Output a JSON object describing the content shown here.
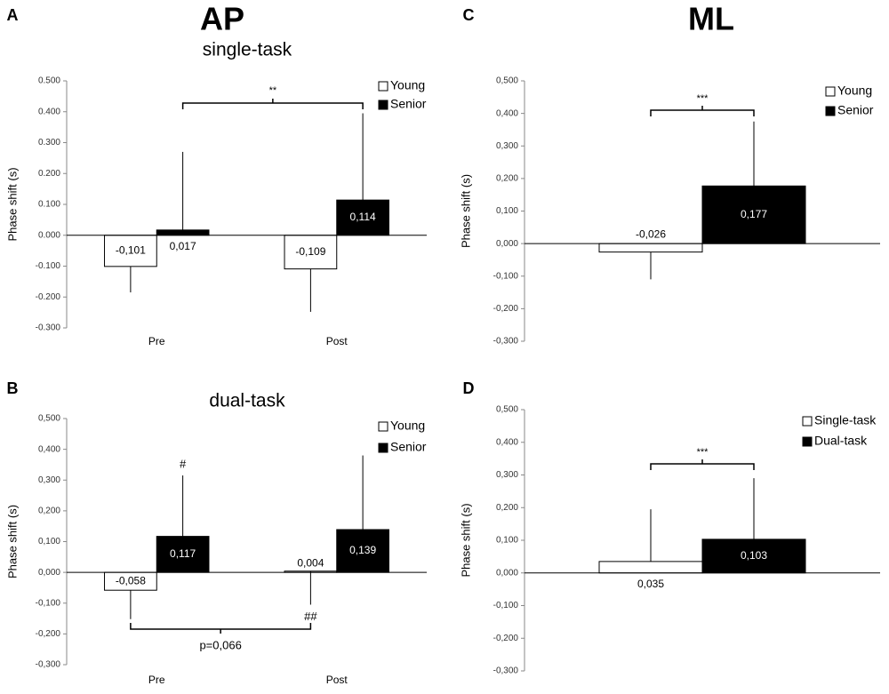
{
  "column_titles": [
    "AP",
    "ML"
  ],
  "chart_data": [
    {
      "type": "bar",
      "panel": "A",
      "title": "single-task",
      "ylabel": "Phase shift (s)",
      "categories": [
        "Pre",
        "Post"
      ],
      "series": [
        {
          "name": "Young",
          "color": "#ffffff",
          "values": [
            -0.101,
            -0.109
          ],
          "value_labels": [
            "-0,101",
            "-0,109"
          ],
          "errors": [
            0.084,
            0.139
          ],
          "error_side": "down"
        },
        {
          "name": "Senior",
          "color": "#000000",
          "values": [
            0.017,
            0.114
          ],
          "value_labels": [
            "0,017",
            "0,114"
          ],
          "errors": [
            0.253,
            0.281
          ],
          "error_side": "up"
        }
      ],
      "ylim": [
        -0.3,
        0.5
      ],
      "yticks": [
        {
          "value": -0.3,
          "label": "-0.300"
        },
        {
          "value": -0.2,
          "label": "-0.200"
        },
        {
          "value": -0.1,
          "label": "-0.100"
        },
        {
          "value": 0,
          "label": "0.000"
        },
        {
          "value": 0.1,
          "label": "0.100"
        },
        {
          "value": 0.2,
          "label": "0.200"
        },
        {
          "value": 0.3,
          "label": "0.300"
        },
        {
          "value": 0.4,
          "label": "0.400"
        },
        {
          "value": 0.5,
          "label": "0.500"
        }
      ],
      "legend": "upper right",
      "annotations": [
        "**"
      ]
    },
    {
      "type": "bar",
      "panel": "B",
      "title": "dual-task",
      "ylabel": "Phase shift (s)",
      "categories": [
        "Pre",
        "Post"
      ],
      "series": [
        {
          "name": "Young",
          "color": "#ffffff",
          "values": [
            -0.058,
            0.004
          ],
          "value_labels": [
            "-0,058",
            "0,004"
          ],
          "errors": [
            0.094,
            0.109
          ],
          "error_side": "down"
        },
        {
          "name": "Senior",
          "color": "#000000",
          "values": [
            0.117,
            0.139
          ],
          "value_labels": [
            "0,117",
            "0,139"
          ],
          "errors": [
            0.198,
            0.241
          ],
          "error_side": "up"
        }
      ],
      "ylim": [
        -0.3,
        0.5
      ],
      "yticks": [
        {
          "value": -0.3,
          "label": "-0,300"
        },
        {
          "value": -0.2,
          "label": "-0,200"
        },
        {
          "value": -0.1,
          "label": "-0,100"
        },
        {
          "value": 0,
          "label": "0,000"
        },
        {
          "value": 0.1,
          "label": "0,100"
        },
        {
          "value": 0.2,
          "label": "0,200"
        },
        {
          "value": 0.3,
          "label": "0,300"
        },
        {
          "value": 0.4,
          "label": "0,400"
        },
        {
          "value": 0.5,
          "label": "0,500"
        }
      ],
      "legend": "upper right",
      "annotations": [
        "#",
        "##",
        "p=0,066"
      ]
    },
    {
      "type": "bar",
      "panel": "C",
      "ylabel": "Phase shift (s)",
      "categories": [
        null
      ],
      "series": [
        {
          "name": "Young",
          "color": "#ffffff",
          "values": [
            -0.026
          ],
          "value_labels": [
            "-0,026"
          ],
          "errors": [
            0.084
          ],
          "error_side": "down"
        },
        {
          "name": "Senior",
          "color": "#000000",
          "values": [
            0.177
          ],
          "value_labels": [
            "0,177"
          ],
          "errors": [
            0.198
          ],
          "error_side": "up"
        }
      ],
      "ylim": [
        -0.3,
        0.5
      ],
      "yticks": [
        {
          "value": -0.3,
          "label": "-0,300"
        },
        {
          "value": -0.2,
          "label": "-0,200"
        },
        {
          "value": -0.1,
          "label": "-0,100"
        },
        {
          "value": 0,
          "label": "0,000"
        },
        {
          "value": 0.1,
          "label": "0,100"
        },
        {
          "value": 0.2,
          "label": "0,200"
        },
        {
          "value": 0.3,
          "label": "0,300"
        },
        {
          "value": 0.4,
          "label": "0,400"
        },
        {
          "value": 0.5,
          "label": "0,500"
        }
      ],
      "legend": "upper right",
      "annotations": [
        "***"
      ]
    },
    {
      "type": "bar",
      "panel": "D",
      "ylabel": "Phase shift (s)",
      "categories": [
        null
      ],
      "series": [
        {
          "name": "Single-task",
          "color": "#ffffff",
          "values": [
            0.035
          ],
          "value_labels": [
            "0,035"
          ],
          "errors": [
            0.16
          ],
          "error_side": "up"
        },
        {
          "name": "Dual-task",
          "color": "#000000",
          "values": [
            0.103
          ],
          "value_labels": [
            "0,103"
          ],
          "errors": [
            0.187
          ],
          "error_side": "up"
        }
      ],
      "ylim": [
        -0.3,
        0.5
      ],
      "yticks": [
        {
          "value": -0.3,
          "label": "-0,300"
        },
        {
          "value": -0.2,
          "label": "-0,200"
        },
        {
          "value": -0.1,
          "label": "-0,100"
        },
        {
          "value": 0,
          "label": "0,000"
        },
        {
          "value": 0.1,
          "label": "0,100"
        },
        {
          "value": 0.2,
          "label": "0,200"
        },
        {
          "value": 0.3,
          "label": "0,300"
        },
        {
          "value": 0.4,
          "label": "0,400"
        },
        {
          "value": 0.5,
          "label": "0,500"
        }
      ],
      "legend": "upper right",
      "annotations": [
        "***"
      ]
    }
  ]
}
